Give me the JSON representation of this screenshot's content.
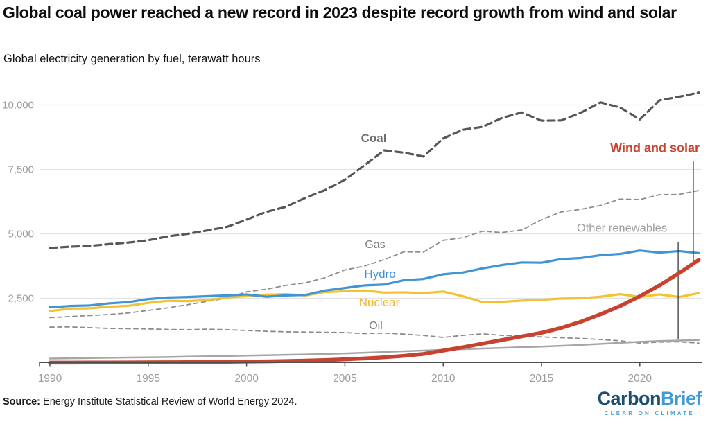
{
  "header": {
    "title": "Global coal power reached a new record in 2023 despite record growth from wind and solar",
    "subtitle": "Global electricity generation by fuel, terawatt hours"
  },
  "chart_data": {
    "type": "line",
    "title": "Global electricity generation by fuel, terawatt hours",
    "x": [
      1990,
      1991,
      1992,
      1993,
      1994,
      1995,
      1996,
      1997,
      1998,
      1999,
      2000,
      2001,
      2002,
      2003,
      2004,
      2005,
      2006,
      2007,
      2008,
      2009,
      2010,
      2011,
      2012,
      2013,
      2014,
      2015,
      2016,
      2017,
      2018,
      2019,
      2020,
      2021,
      2022,
      2023
    ],
    "series": [
      {
        "id": "coal",
        "name": "Coal",
        "color": "#575757",
        "label_color": "#6e6e6e",
        "line_style": "dashed",
        "values": [
          4450,
          4500,
          4530,
          4600,
          4660,
          4750,
          4900,
          5000,
          5130,
          5270,
          5550,
          5850,
          6050,
          6400,
          6700,
          7100,
          7660,
          8240,
          8150,
          8000,
          8700,
          9040,
          9150,
          9500,
          9710,
          9390,
          9400,
          9700,
          10100,
          9900,
          9440,
          10180,
          10320,
          10480
        ]
      },
      {
        "id": "gas",
        "name": "Gas",
        "color": "#8c8c8c",
        "label_color": "#7d7d7d",
        "line_style": "dashed",
        "values": [
          1750,
          1790,
          1830,
          1870,
          1930,
          2030,
          2130,
          2250,
          2380,
          2500,
          2750,
          2850,
          3000,
          3100,
          3300,
          3600,
          3750,
          4000,
          4300,
          4290,
          4750,
          4850,
          5100,
          5050,
          5150,
          5550,
          5850,
          5950,
          6100,
          6350,
          6330,
          6520,
          6530,
          6680
        ]
      },
      {
        "id": "hydro",
        "name": "Hydro",
        "color": "#4295d5",
        "label_color": "#4295d5",
        "line_style": "solid",
        "values": [
          2150,
          2200,
          2220,
          2300,
          2350,
          2470,
          2530,
          2550,
          2580,
          2610,
          2650,
          2560,
          2610,
          2630,
          2800,
          2900,
          3000,
          3030,
          3200,
          3250,
          3430,
          3500,
          3660,
          3790,
          3890,
          3880,
          4020,
          4060,
          4170,
          4220,
          4350,
          4270,
          4330,
          4250
        ]
      },
      {
        "id": "nuclear",
        "name": "Nuclear",
        "color": "#f2c233",
        "label_color": "#f4b02a",
        "line_style": "solid",
        "values": [
          2000,
          2100,
          2110,
          2170,
          2210,
          2320,
          2400,
          2390,
          2430,
          2530,
          2580,
          2640,
          2660,
          2610,
          2740,
          2770,
          2800,
          2720,
          2730,
          2700,
          2760,
          2580,
          2350,
          2360,
          2410,
          2440,
          2490,
          2500,
          2560,
          2660,
          2550,
          2650,
          2550,
          2700
        ]
      },
      {
        "id": "oil",
        "name": "Oil",
        "color": "#8c8c8c",
        "label_color": "#7d7d7d",
        "line_style": "dashed",
        "values": [
          1380,
          1390,
          1360,
          1330,
          1320,
          1310,
          1290,
          1280,
          1300,
          1280,
          1250,
          1220,
          1200,
          1190,
          1180,
          1170,
          1130,
          1150,
          1110,
          1060,
          980,
          1060,
          1120,
          1060,
          1030,
          1000,
          970,
          940,
          900,
          850,
          760,
          800,
          810,
          760
        ]
      },
      {
        "id": "other_renewables",
        "name": "Other renewables",
        "color": "#a6a6a6",
        "label_color": "#9e9e9e",
        "line_style": "solid",
        "values": [
          160,
          170,
          180,
          190,
          200,
          210,
          220,
          235,
          250,
          260,
          275,
          290,
          305,
          320,
          340,
          360,
          385,
          415,
          445,
          470,
          500,
          525,
          550,
          575,
          600,
          625,
          655,
          690,
          730,
          770,
          810,
          840,
          860,
          880
        ]
      },
      {
        "id": "wind_solar",
        "name": "Wind and solar",
        "color": "#c8432f",
        "label_color": "#c8432f",
        "line_style": "solid",
        "values": [
          4,
          5,
          6,
          8,
          10,
          13,
          16,
          20,
          26,
          33,
          42,
          52,
          65,
          80,
          100,
          130,
          165,
          210,
          265,
          340,
          470,
          600,
          740,
          880,
          1020,
          1160,
          1350,
          1590,
          1880,
          2200,
          2580,
          3000,
          3480,
          3990
        ]
      }
    ],
    "y_axis": {
      "ticks": [
        2500,
        5000,
        7500,
        10000
      ],
      "tick_labels": [
        "2,500",
        "5,000",
        "7,500",
        "10,000"
      ],
      "range": [
        0,
        10600
      ]
    },
    "x_axis": {
      "ticks": [
        1990,
        1995,
        2000,
        2005,
        2010,
        2015,
        2020
      ],
      "tick_labels": [
        "1990",
        "1995",
        "2000",
        "2005",
        "2010",
        "2015",
        "2020"
      ]
    },
    "grid": "horizontal-only",
    "legend_position": "inline-labels",
    "annotations": [
      {
        "series": "wind_solar",
        "year": 2022.72,
        "label": "Wind and solar"
      },
      {
        "series": "other_renewables",
        "year": 2021.95,
        "label": "Other renewables"
      }
    ]
  },
  "footer": {
    "source_label": "Source:",
    "source_text": "Energy Institute Statistical Review of World Energy 2024.",
    "logo": {
      "part1": "Carbon",
      "part2": "Brief",
      "tagline": "CLEAR ON CLIMATE"
    }
  }
}
